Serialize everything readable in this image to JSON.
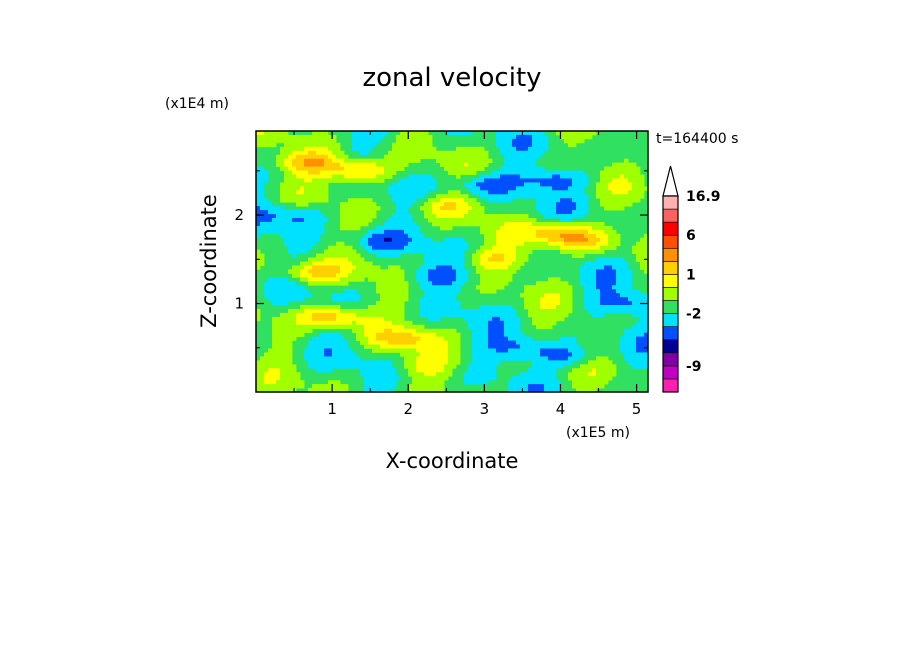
{
  "chart_data": {
    "type": "heatmap",
    "title": "zonal velocity",
    "xlabel": "X-coordinate",
    "ylabel": "Z-coordinate",
    "x_unit": "(x1E5 m)",
    "y_unit": "(x1E4 m)",
    "timestamp": "t=164400 s",
    "xlim": [
      0,
      5.15
    ],
    "ylim": [
      0,
      2.95
    ],
    "x_ticks": [
      1,
      2,
      3,
      4,
      5
    ],
    "y_ticks": [
      1,
      2
    ],
    "colorbar": {
      "labels": [
        "16.9",
        "6",
        "1",
        "-2",
        "-9"
      ],
      "extend": "max",
      "colors": [
        "#ff1fb0",
        "#c000c0",
        "#8000a8",
        "#000090",
        "#0050ff",
        "#00e0ff",
        "#30e060",
        "#a0ff00",
        "#ffff00",
        "#ffd000",
        "#ff9000",
        "#ff5000",
        "#ff0000",
        "#ff6060",
        "#ffb0b0"
      ]
    },
    "features": [
      {
        "x": 1.35,
        "z": 2.5,
        "level": 2.8
      },
      {
        "x": 0.7,
        "z": 2.6,
        "level": 2.2
      },
      {
        "x": 3.95,
        "z": 1.8,
        "level": 2.4
      },
      {
        "x": 4.3,
        "z": 1.7,
        "level": 1.8
      },
      {
        "x": 0.75,
        "z": 1.35,
        "level": 2.2
      },
      {
        "x": 1.0,
        "z": 0.85,
        "level": 2.6
      },
      {
        "x": 3.1,
        "z": 1.5,
        "level": 1.6
      },
      {
        "x": 2.5,
        "z": 2.1,
        "level": 1.4
      },
      {
        "x": 1.9,
        "z": 0.6,
        "level": 1.8
      },
      {
        "x": 3.0,
        "z": 2.35,
        "level": -1.6
      },
      {
        "x": 3.9,
        "z": 2.4,
        "level": -1.5
      },
      {
        "x": 0.5,
        "z": 2.0,
        "level": -1.3
      },
      {
        "x": 2.3,
        "z": 1.3,
        "level": -1.2
      },
      {
        "x": 3.5,
        "z": 0.5,
        "level": -1.4
      },
      {
        "x": 4.1,
        "z": 0.4,
        "level": -1.5
      },
      {
        "x": 2.2,
        "z": 0.3,
        "level": 1.0
      },
      {
        "x": 4.85,
        "z": 1.0,
        "level": -1.4
      },
      {
        "x": 1.6,
        "z": 1.7,
        "level": -1.2
      }
    ]
  }
}
